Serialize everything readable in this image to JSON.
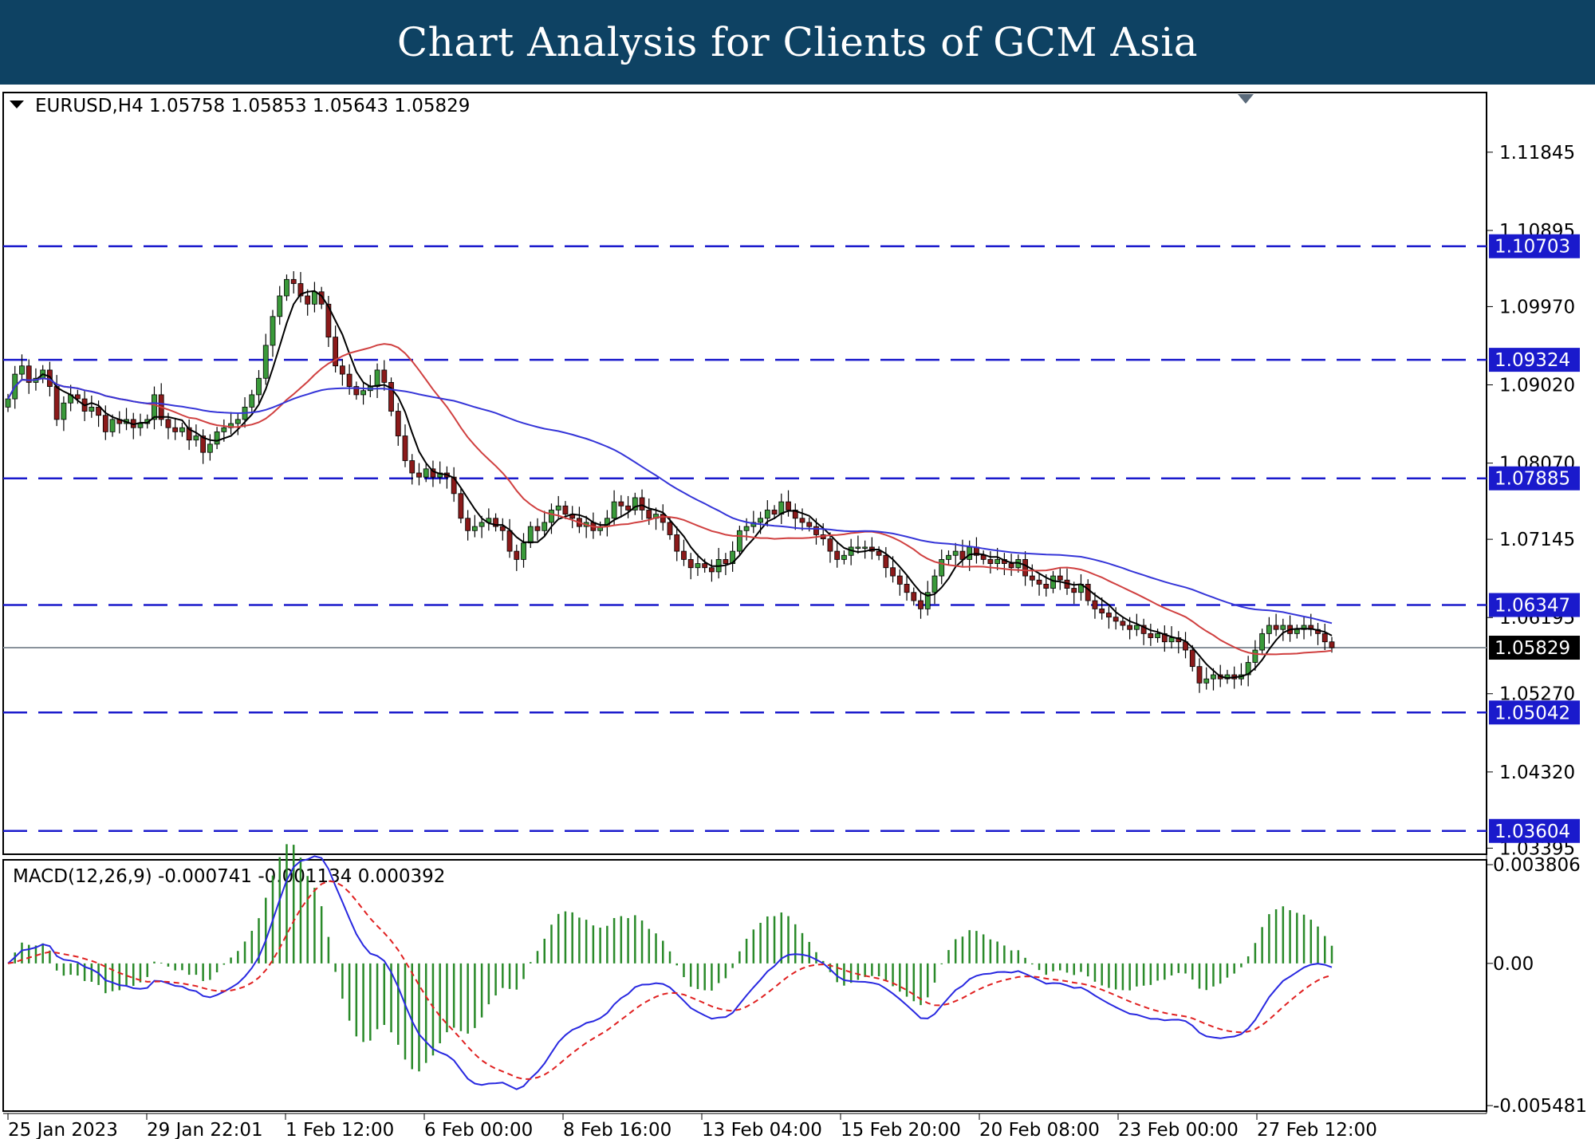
{
  "header": {
    "title": "Chart Analysis for Clients of GCM Asia"
  },
  "chart_data": {
    "type": "candlestick",
    "symbol_info": "EURUSD,H4  1.05758 1.05853 1.05643 1.05829",
    "price_axis": {
      "range": [
        1.0335,
        1.1255
      ],
      "ticks": [
        {
          "value": 1.11845,
          "label": "1.11845"
        },
        {
          "value": 1.10895,
          "label": "1.10895"
        },
        {
          "value": 1.0997,
          "label": "1.09970"
        },
        {
          "value": 1.0902,
          "label": "1.09020"
        },
        {
          "value": 1.0807,
          "label": "1.08070"
        },
        {
          "value": 1.07145,
          "label": "1.07145"
        },
        {
          "value": 1.06195,
          "label": "1.06195"
        },
        {
          "value": 1.0527,
          "label": "1.05270"
        },
        {
          "value": 1.0432,
          "label": "1.04320"
        },
        {
          "value": 1.03395,
          "label": "1.03395"
        }
      ]
    },
    "levels": [
      {
        "value": 1.10703,
        "label": "1.10703"
      },
      {
        "value": 1.09324,
        "label": "1.09324"
      },
      {
        "value": 1.07885,
        "label": "1.07885"
      },
      {
        "value": 1.06347,
        "label": "1.06347"
      },
      {
        "value": 1.05042,
        "label": "1.05042"
      },
      {
        "value": 1.03604,
        "label": "1.03604"
      }
    ],
    "current_price": {
      "value": 1.05829,
      "label": "1.05829"
    },
    "time_labels": [
      "25 Jan 2023",
      "29 Jan 22:01",
      "1 Feb 12:00",
      "6 Feb 00:00",
      "8 Feb 16:00",
      "13 Feb 04:00",
      "15 Feb 20:00",
      "20 Feb 08:00",
      "23 Feb 00:00",
      "27 Feb 12:00"
    ],
    "closes": [
      1.0885,
      1.0915,
      1.0925,
      1.0905,
      1.091,
      1.092,
      1.09,
      1.086,
      1.088,
      1.089,
      1.0885,
      1.087,
      1.0875,
      1.0865,
      1.0845,
      1.086,
      1.0855,
      1.086,
      1.085,
      1.0855,
      1.086,
      1.089,
      1.086,
      1.085,
      1.0845,
      1.085,
      1.0835,
      1.084,
      1.082,
      1.083,
      1.0845,
      1.085,
      1.0855,
      1.086,
      1.0875,
      1.089,
      1.091,
      1.095,
      1.0985,
      1.101,
      1.103,
      1.1025,
      1.101,
      1.1,
      1.1015,
      1.1,
      1.096,
      1.0925,
      1.0915,
      1.09,
      1.089,
      1.0895,
      1.09,
      1.092,
      1.0905,
      1.087,
      1.084,
      1.081,
      1.0795,
      1.079,
      1.08,
      1.079,
      1.0795,
      1.079,
      1.077,
      1.074,
      1.0725,
      1.073,
      1.0735,
      1.074,
      1.073,
      1.0725,
      1.07,
      1.069,
      1.071,
      1.073,
      1.0725,
      1.0735,
      1.075,
      1.0755,
      1.0745,
      1.074,
      1.073,
      1.0735,
      1.0725,
      1.073,
      1.074,
      1.076,
      1.0755,
      1.075,
      1.0765,
      1.075,
      1.074,
      1.0745,
      1.0735,
      1.072,
      1.07,
      1.069,
      1.068,
      1.0685,
      1.068,
      1.0675,
      1.069,
      1.0685,
      1.07,
      1.0725,
      1.073,
      1.0735,
      1.074,
      1.075,
      1.0745,
      1.076,
      1.075,
      1.074,
      1.0735,
      1.073,
      1.072,
      1.0715,
      1.07,
      1.069,
      1.0695,
      1.0705,
      1.0705,
      1.0705,
      1.07,
      1.0695,
      1.068,
      1.067,
      1.066,
      1.065,
      1.064,
      1.063,
      1.065,
      1.067,
      1.069,
      1.0695,
      1.07,
      1.069,
      1.0705,
      1.0695,
      1.069,
      1.0685,
      1.069,
      1.0685,
      1.068,
      1.069,
      1.067,
      1.0665,
      1.066,
      1.0655,
      1.067,
      1.0665,
      1.0655,
      1.065,
      1.066,
      1.064,
      1.063,
      1.0625,
      1.062,
      1.0615,
      1.061,
      1.0605,
      1.061,
      1.06,
      1.0595,
      1.06,
      1.059,
      1.0595,
      1.059,
      1.058,
      1.056,
      1.054,
      1.0545,
      1.055,
      1.0545,
      1.055,
      1.0545,
      1.055,
      1.0565,
      1.058,
      1.06,
      1.061,
      1.0605,
      1.061,
      1.06,
      1.0605,
      1.061,
      1.0605,
      1.06,
      1.059,
      1.05829
    ],
    "ma_fast_color": "#000000",
    "ma_mid_color": "#d04040",
    "ma_slow_color": "#3535d8",
    "bull_color": "#3a9a3a",
    "bear_color": "#8b1a1a",
    "level_color": "#1a1acc",
    "macd": {
      "info": "MACD(12,26,9) -0.000741 -0.001134 0.000392",
      "range": [
        -0.0056,
        0.0039
      ],
      "ticks": [
        {
          "value": 0.003806,
          "label": "0.003806"
        },
        {
          "value": 0.0,
          "label": "0.00"
        },
        {
          "value": -0.005481,
          "label": "-0.005481"
        }
      ],
      "histogram_color": "#2a8a2a",
      "line_color": "#2828e0",
      "signal_color": "#e02020"
    }
  }
}
